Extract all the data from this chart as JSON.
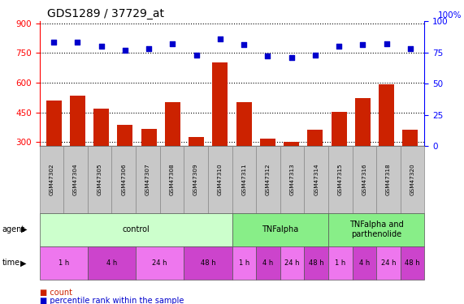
{
  "title": "GDS1289 / 37729_at",
  "samples": [
    "GSM47302",
    "GSM47304",
    "GSM47305",
    "GSM47306",
    "GSM47307",
    "GSM47308",
    "GSM47309",
    "GSM47310",
    "GSM47311",
    "GSM47312",
    "GSM47313",
    "GSM47314",
    "GSM47315",
    "GSM47316",
    "GSM47318",
    "GSM47320"
  ],
  "counts": [
    510,
    535,
    468,
    385,
    365,
    500,
    325,
    700,
    500,
    315,
    302,
    360,
    453,
    520,
    590,
    360
  ],
  "percentiles": [
    83,
    83,
    80,
    77,
    78,
    82,
    73,
    86,
    81,
    72,
    71,
    73,
    80,
    81,
    82,
    78
  ],
  "ylim_left": [
    280,
    910
  ],
  "ylim_right": [
    0,
    100
  ],
  "yticks_left": [
    300,
    450,
    600,
    750,
    900
  ],
  "yticks_right": [
    0,
    25,
    50,
    75,
    100
  ],
  "bar_color": "#CC2200",
  "dot_color": "#0000CC",
  "sample_bg_color": "#C8C8C8",
  "plot_bg_color": "#FFFFFF",
  "agent_groups": [
    {
      "label": "control",
      "start": 0,
      "end": 8,
      "color": "#CCFFCC"
    },
    {
      "label": "TNFalpha",
      "start": 8,
      "end": 12,
      "color": "#88EE88"
    },
    {
      "label": "TNFalpha and\nparthenolide",
      "start": 12,
      "end": 16,
      "color": "#88EE88"
    }
  ],
  "time_groups": [
    {
      "label": "1 h",
      "start": 0,
      "end": 2,
      "color": "#EE77EE"
    },
    {
      "label": "4 h",
      "start": 2,
      "end": 4,
      "color": "#CC44CC"
    },
    {
      "label": "24 h",
      "start": 4,
      "end": 6,
      "color": "#EE77EE"
    },
    {
      "label": "48 h",
      "start": 6,
      "end": 8,
      "color": "#CC44CC"
    },
    {
      "label": "1 h",
      "start": 8,
      "end": 9,
      "color": "#EE77EE"
    },
    {
      "label": "4 h",
      "start": 9,
      "end": 10,
      "color": "#CC44CC"
    },
    {
      "label": "24 h",
      "start": 10,
      "end": 11,
      "color": "#EE77EE"
    },
    {
      "label": "48 h",
      "start": 11,
      "end": 12,
      "color": "#CC44CC"
    },
    {
      "label": "1 h",
      "start": 12,
      "end": 13,
      "color": "#EE77EE"
    },
    {
      "label": "4 h",
      "start": 13,
      "end": 14,
      "color": "#CC44CC"
    },
    {
      "label": "24 h",
      "start": 14,
      "end": 15,
      "color": "#EE77EE"
    },
    {
      "label": "48 h",
      "start": 15,
      "end": 16,
      "color": "#CC44CC"
    }
  ]
}
